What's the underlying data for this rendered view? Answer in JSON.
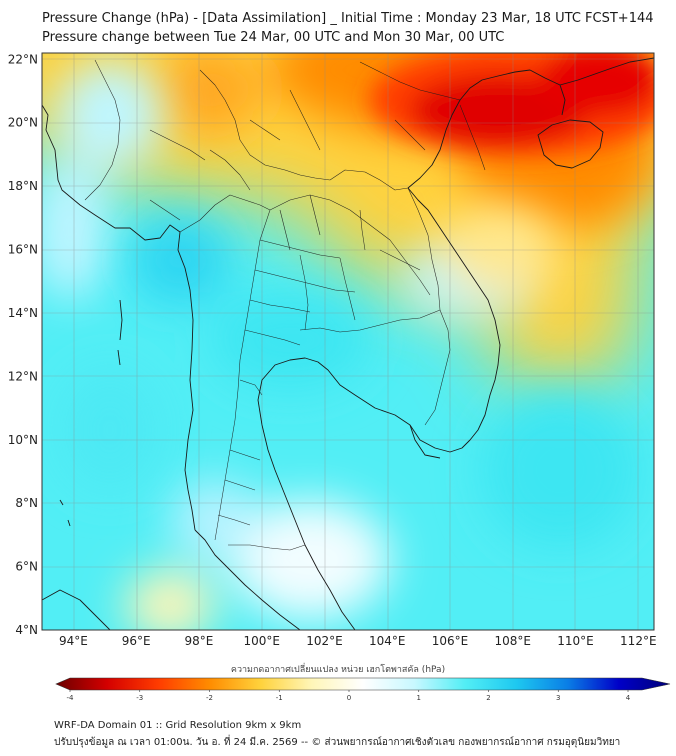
{
  "title": {
    "line1": "Pressure Change (hPa) - [Data Assimilation] _ Initial Time : Monday 23 Mar, 18 UTC FCST+144",
    "line2": "Pressure change between Tue 24 Mar, 00 UTC and Mon 30 Mar, 00 UTC"
  },
  "map": {
    "lat_labels": [
      "22°N",
      "20°N",
      "18°N",
      "16°N",
      "14°N",
      "12°N",
      "10°N",
      "8°N",
      "6°N",
      "4°N"
    ],
    "lon_labels": [
      "94°E",
      "96°E",
      "98°E",
      "100°E",
      "102°E",
      "104°E",
      "106°E",
      "108°E",
      "110°E",
      "112°E"
    ],
    "lat_range": [
      4,
      22
    ],
    "lon_range": [
      93,
      112.5
    ],
    "fields": [
      {
        "region": "northeast (southern China, Gulf of Tonkin)",
        "change_hpa": -3.5,
        "color": "#d40000"
      },
      {
        "region": "northern Vietnam / Laos",
        "change_hpa": -2.0,
        "color": "#ff8c00"
      },
      {
        "region": "northern Myanmar / northern Thailand",
        "change_hpa": -1.0,
        "color": "#ffd23c"
      },
      {
        "region": "central Thailand / Andaman Sea",
        "change_hpa": 1.8,
        "color": "#3ce6f2"
      },
      {
        "region": "Gulf of Thailand / South China Sea",
        "change_hpa": 1.5,
        "color": "#52eef5"
      },
      {
        "region": "Malay Peninsula",
        "change_hpa": 0.4,
        "color": "#e8fcff"
      }
    ]
  },
  "colorbar": {
    "title": "ความกดอากาศเปลี่ยนแปลง หน่วย เฮกโตพาสคัล (hPa)",
    "ticks": [
      "-4",
      "-3",
      "-2",
      "-1",
      "0",
      "1",
      "2",
      "3",
      "4"
    ],
    "range": [
      -4,
      4
    ],
    "colors": [
      "#6b0000",
      "#d40000",
      "#ff3c00",
      "#ff8c00",
      "#ffd23c",
      "#fff6b8",
      "#ffffff",
      "#c8f8ff",
      "#52eef5",
      "#1ec8f0",
      "#0a7ee6",
      "#0000c8",
      "#000078"
    ]
  },
  "footer": {
    "line1": "WRF-DA Domain 01 :: Grid Resolution 9km x 9km",
    "line2": "ปรับปรุงข้อมูล ณ เวลา 01:00น. วัน อ. ที่ 24 มี.ค. 2569 -- © ส่วนพยากรณ์อากาศเชิงตัวเลข กองพยากรณ์อากาศ กรมอุตุนิยมวิทยา"
  }
}
